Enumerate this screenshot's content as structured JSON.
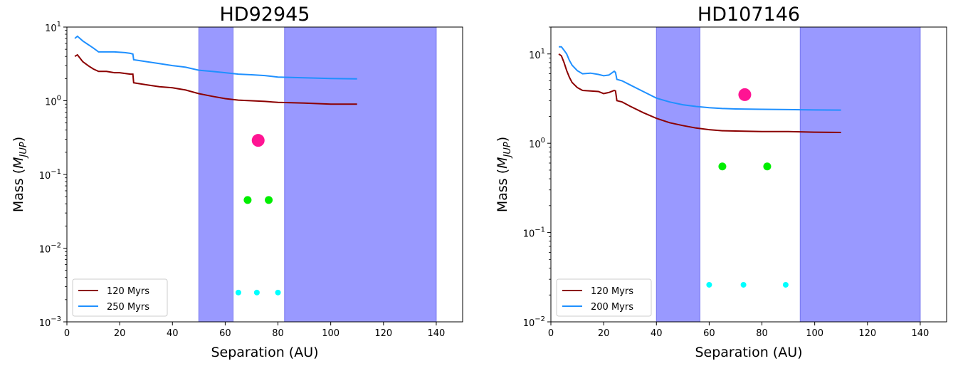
{
  "chart_data": [
    {
      "type": "line",
      "title": "HD92945",
      "xlabel": "Separation (AU)",
      "ylabel": "Mass",
      "ylabel_sub": "JUP",
      "yscale": "log",
      "xlim": [
        0,
        150
      ],
      "ylim": [
        0.001,
        10
      ],
      "x_ticks": [
        0,
        20,
        40,
        60,
        80,
        100,
        120,
        140
      ],
      "y_ticks": [
        {
          "value": 0.001,
          "base": "10",
          "exp": "−3"
        },
        {
          "value": 0.01,
          "base": "10",
          "exp": "−2"
        },
        {
          "value": 0.1,
          "base": "10",
          "exp": "−1"
        },
        {
          "value": 1,
          "base": "10",
          "exp": "0"
        },
        {
          "value": 10,
          "base": "10",
          "exp": "1"
        }
      ],
      "legend_position": "lower-left",
      "shaded_regions": [
        {
          "x_range": [
            50,
            63
          ],
          "color": "#9999ff"
        },
        {
          "x_range": [
            82.5,
            140
          ],
          "color": "#9999ff"
        }
      ],
      "series": [
        {
          "name": "120 Myrs",
          "color": "#8b0000",
          "x": [
            3,
            4,
            6,
            8,
            10,
            12,
            15,
            18,
            20,
            22,
            24,
            25,
            25.3,
            30,
            35,
            40,
            45,
            50,
            55,
            60,
            65,
            70,
            75,
            80,
            90,
            100,
            110
          ],
          "y": [
            4.0,
            4.2,
            3.4,
            3.0,
            2.7,
            2.5,
            2.5,
            2.4,
            2.4,
            2.35,
            2.3,
            2.3,
            1.75,
            1.65,
            1.55,
            1.5,
            1.4,
            1.25,
            1.15,
            1.07,
            1.02,
            1.0,
            0.98,
            0.95,
            0.93,
            0.9,
            0.9
          ]
        },
        {
          "name": "250 Myrs",
          "color": "#1f90ff",
          "x": [
            3,
            4,
            6,
            8,
            10,
            12,
            15,
            18,
            20,
            22,
            24,
            25,
            25.3,
            30,
            35,
            40,
            45,
            50,
            55,
            60,
            65,
            70,
            75,
            80,
            90,
            100,
            110
          ],
          "y": [
            7.0,
            7.5,
            6.5,
            5.8,
            5.2,
            4.6,
            4.6,
            4.6,
            4.55,
            4.5,
            4.4,
            4.3,
            3.6,
            3.4,
            3.2,
            3.0,
            2.85,
            2.6,
            2.5,
            2.4,
            2.3,
            2.25,
            2.2,
            2.1,
            2.05,
            2.0,
            1.98
          ]
        }
      ],
      "markers": [
        {
          "x": 72.5,
          "y": 0.29,
          "color": "#ff1493",
          "size": "large"
        },
        {
          "x": 68.5,
          "y": 0.045,
          "color": "#00ee00",
          "size": "medium"
        },
        {
          "x": 76.5,
          "y": 0.045,
          "color": "#00ee00",
          "size": "medium"
        },
        {
          "x": 65,
          "y": 0.0025,
          "color": "#00ffff",
          "size": "small"
        },
        {
          "x": 72,
          "y": 0.0025,
          "color": "#00ffff",
          "size": "small"
        },
        {
          "x": 80,
          "y": 0.0025,
          "color": "#00ffff",
          "size": "small"
        }
      ]
    },
    {
      "type": "line",
      "title": "HD107146",
      "xlabel": "Separation (AU)",
      "ylabel": "Mass",
      "ylabel_sub": "JUP",
      "yscale": "log",
      "xlim": [
        0,
        150
      ],
      "ylim": [
        0.01,
        20
      ],
      "x_ticks": [
        0,
        20,
        40,
        60,
        80,
        100,
        120,
        140
      ],
      "y_ticks": [
        {
          "value": 0.01,
          "base": "10",
          "exp": "−2"
        },
        {
          "value": 0.1,
          "base": "10",
          "exp": "−1"
        },
        {
          "value": 1,
          "base": "10",
          "exp": "0"
        },
        {
          "value": 10,
          "base": "10",
          "exp": "1"
        }
      ],
      "legend_position": "lower-left",
      "shaded_regions": [
        {
          "x_range": [
            40,
            56.5
          ],
          "color": "#9999ff"
        },
        {
          "x_range": [
            94.5,
            140
          ],
          "color": "#9999ff"
        }
      ],
      "series": [
        {
          "name": "120 Myrs",
          "color": "#8b0000",
          "x": [
            3,
            4,
            5,
            6,
            7,
            8,
            10,
            12,
            15,
            18,
            20,
            22,
            24,
            24.5,
            25,
            27,
            30,
            35,
            40,
            45,
            50,
            55,
            60,
            65,
            70,
            80,
            90,
            100,
            110
          ],
          "y": [
            10.0,
            9.5,
            8.0,
            6.5,
            5.5,
            4.8,
            4.2,
            3.9,
            3.85,
            3.8,
            3.6,
            3.7,
            3.9,
            3.85,
            3.0,
            2.9,
            2.6,
            2.2,
            1.9,
            1.7,
            1.58,
            1.48,
            1.42,
            1.38,
            1.37,
            1.35,
            1.35,
            1.33,
            1.32
          ]
        },
        {
          "name": "200 Myrs",
          "color": "#1f90ff",
          "x": [
            3,
            4,
            5,
            6,
            7,
            8,
            10,
            12,
            15,
            18,
            20,
            22,
            24,
            24.5,
            25,
            27,
            30,
            35,
            40,
            45,
            50,
            55,
            60,
            65,
            70,
            80,
            90,
            100,
            110
          ],
          "y": [
            12.0,
            12.0,
            11.0,
            10.0,
            8.5,
            7.5,
            6.5,
            6.0,
            6.1,
            5.9,
            5.7,
            5.8,
            6.4,
            6.2,
            5.2,
            5.0,
            4.5,
            3.8,
            3.2,
            2.9,
            2.7,
            2.58,
            2.5,
            2.45,
            2.42,
            2.4,
            2.38,
            2.36,
            2.35
          ]
        }
      ],
      "markers": [
        {
          "x": 73.5,
          "y": 3.5,
          "color": "#ff1493",
          "size": "large"
        },
        {
          "x": 65,
          "y": 0.55,
          "color": "#00ee00",
          "size": "medium"
        },
        {
          "x": 82,
          "y": 0.55,
          "color": "#00ee00",
          "size": "medium"
        },
        {
          "x": 60,
          "y": 0.026,
          "color": "#00ffff",
          "size": "small"
        },
        {
          "x": 73,
          "y": 0.026,
          "color": "#00ffff",
          "size": "small"
        },
        {
          "x": 89,
          "y": 0.026,
          "color": "#00ffff",
          "size": "small"
        }
      ]
    }
  ]
}
